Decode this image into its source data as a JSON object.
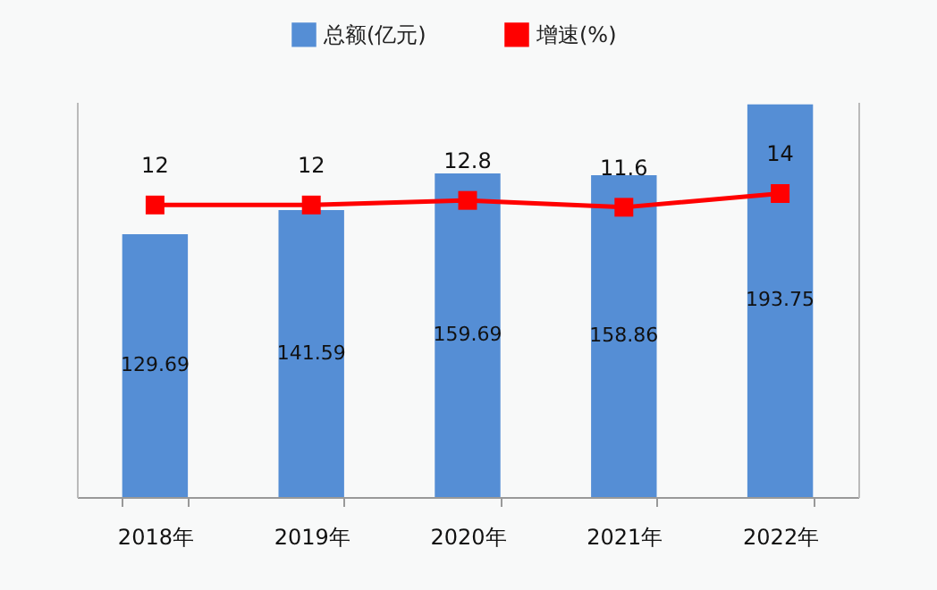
{
  "chart_data": {
    "type": "bar",
    "categories": [
      "2018年",
      "2019年",
      "2020年",
      "2021年",
      "2022年"
    ],
    "series": [
      {
        "name": "总额(亿元)",
        "color": "#558ed5",
        "values": [
          129.69,
          141.59,
          159.69,
          158.86,
          193.75
        ]
      },
      {
        "name": "增速(%)",
        "type": "line",
        "axis": "y2",
        "color": "#ff0000",
        "marker": "square",
        "values": [
          12,
          12,
          12.8,
          11.6,
          14
        ]
      }
    ],
    "ylim": [
      0,
      195
    ],
    "y2lim": [
      -39,
      30
    ],
    "data_labels": true,
    "legend": "top",
    "grid": false,
    "tick_labels": "x"
  }
}
